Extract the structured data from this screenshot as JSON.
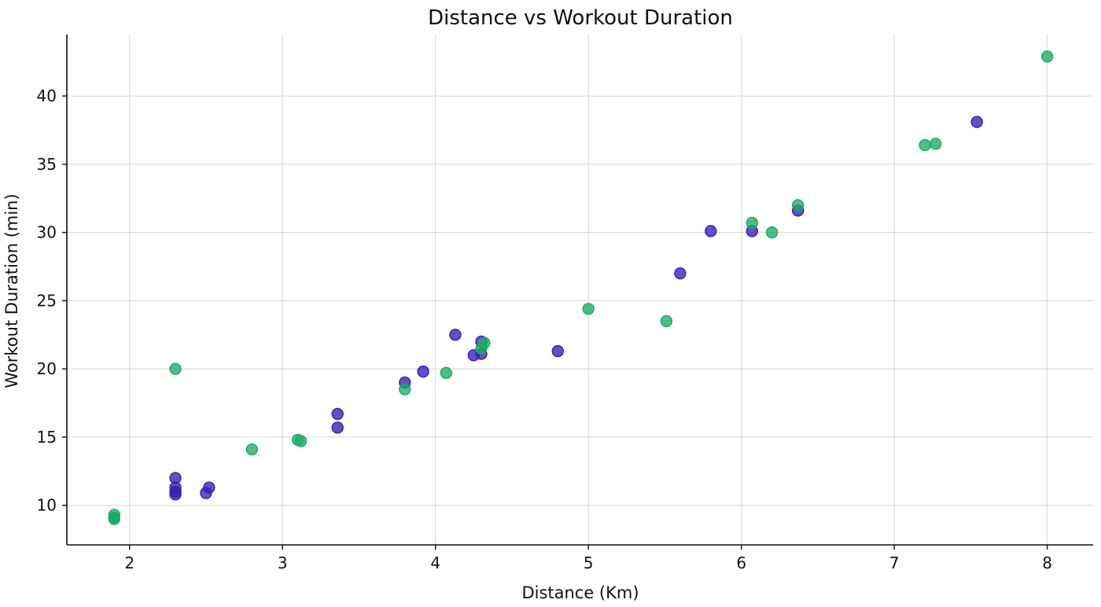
{
  "chart_data": {
    "type": "scatter",
    "title": "Distance vs Workout Duration",
    "xlabel": "Distance (Km)",
    "ylabel": "Workout Duration (min)",
    "xlim": [
      1.59,
      8.3
    ],
    "ylim": [
      7.1,
      44.5
    ],
    "xticks": [
      2,
      3,
      4,
      5,
      6,
      7,
      8
    ],
    "yticks": [
      10,
      15,
      20,
      25,
      30,
      35,
      40
    ],
    "grid": true,
    "legend": "none",
    "series": [
      {
        "color": "#3a1fb0",
        "points": [
          {
            "x": 2.3,
            "y": 12.0
          },
          {
            "x": 2.3,
            "y": 11.3
          },
          {
            "x": 2.3,
            "y": 11.0
          },
          {
            "x": 2.3,
            "y": 10.8
          },
          {
            "x": 2.5,
            "y": 10.9
          },
          {
            "x": 2.52,
            "y": 11.3
          },
          {
            "x": 3.36,
            "y": 16.7
          },
          {
            "x": 3.36,
            "y": 15.7
          },
          {
            "x": 3.8,
            "y": 19.0
          },
          {
            "x": 3.92,
            "y": 19.8
          },
          {
            "x": 4.13,
            "y": 22.5
          },
          {
            "x": 4.25,
            "y": 21.0
          },
          {
            "x": 4.3,
            "y": 22.0
          },
          {
            "x": 4.3,
            "y": 21.1
          },
          {
            "x": 4.8,
            "y": 21.3
          },
          {
            "x": 5.6,
            "y": 27.0
          },
          {
            "x": 5.8,
            "y": 30.1
          },
          {
            "x": 6.07,
            "y": 30.1
          },
          {
            "x": 6.37,
            "y": 31.6
          },
          {
            "x": 7.54,
            "y": 38.1
          }
        ]
      },
      {
        "color": "#1daa66",
        "points": [
          {
            "x": 1.9,
            "y": 9.3
          },
          {
            "x": 1.9,
            "y": 9.1
          },
          {
            "x": 1.9,
            "y": 9.0
          },
          {
            "x": 2.3,
            "y": 20.0
          },
          {
            "x": 2.8,
            "y": 14.1
          },
          {
            "x": 3.1,
            "y": 14.8
          },
          {
            "x": 3.12,
            "y": 14.7
          },
          {
            "x": 3.8,
            "y": 18.5
          },
          {
            "x": 4.07,
            "y": 19.7
          },
          {
            "x": 4.3,
            "y": 21.5
          },
          {
            "x": 4.32,
            "y": 21.9
          },
          {
            "x": 5.0,
            "y": 24.4
          },
          {
            "x": 5.51,
            "y": 23.5
          },
          {
            "x": 6.07,
            "y": 30.7
          },
          {
            "x": 6.2,
            "y": 30.0
          },
          {
            "x": 6.37,
            "y": 32.0
          },
          {
            "x": 7.2,
            "y": 36.4
          },
          {
            "x": 7.27,
            "y": 36.5
          },
          {
            "x": 8.0,
            "y": 42.9
          }
        ]
      }
    ]
  }
}
